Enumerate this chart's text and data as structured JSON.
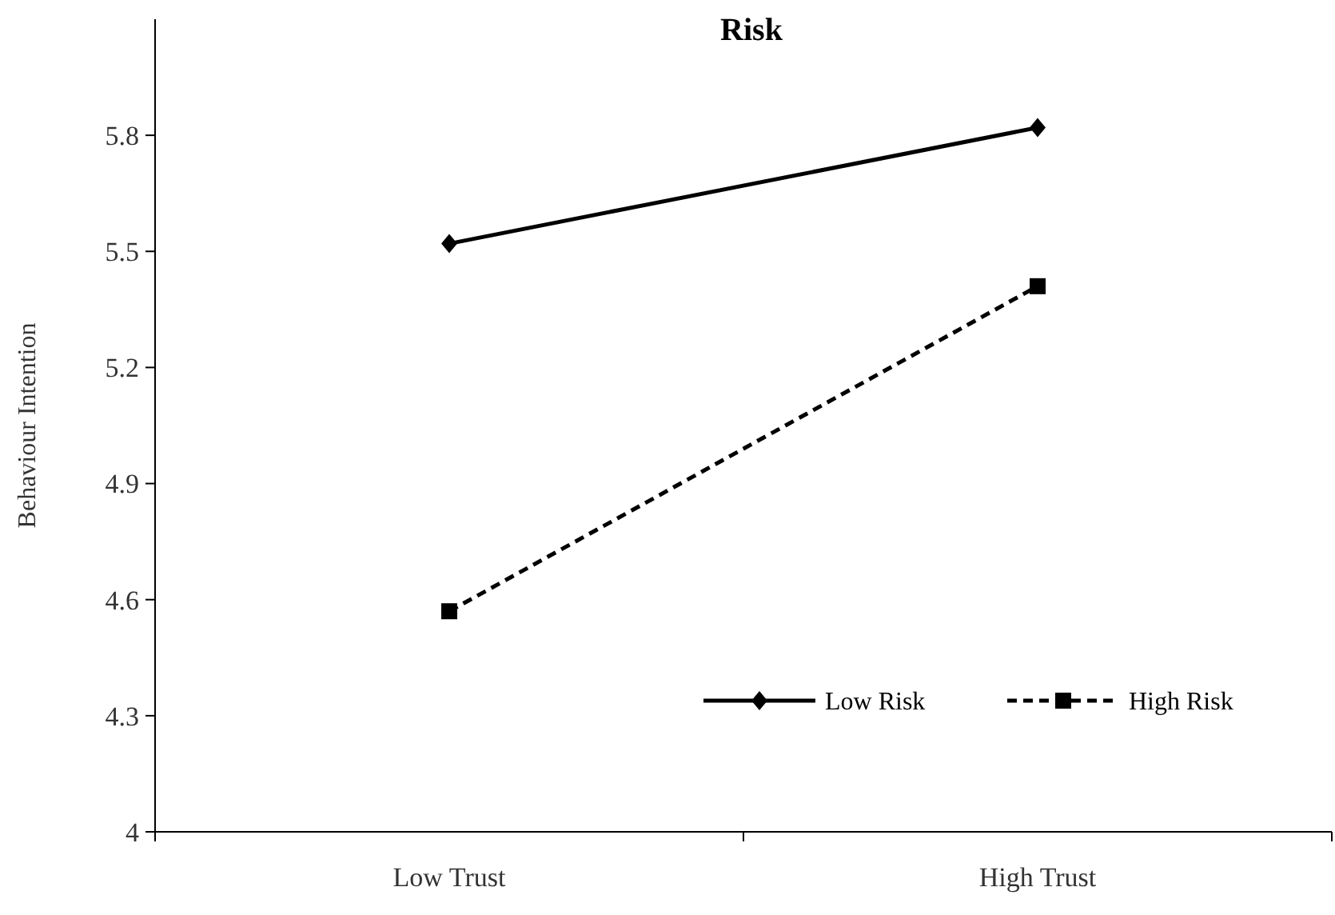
{
  "chart_data": {
    "type": "line",
    "title": "Risk",
    "ylabel": "Behaviour Intention",
    "categories": [
      "Low Trust",
      "High Trust"
    ],
    "series": [
      {
        "name": "Low Risk",
        "color": "#000000",
        "values": [
          5.52,
          5.82
        ],
        "marker": "diamond",
        "line_style": "solid"
      },
      {
        "name": "High Risk",
        "color": "#000000",
        "values": [
          4.57,
          5.41
        ],
        "marker": "square",
        "line_style": "dashed"
      }
    ],
    "ylim": [
      4,
      6.1
    ],
    "yticks": [
      4,
      4.3,
      4.6,
      4.9,
      5.2,
      5.5,
      5.8
    ],
    "grid": false,
    "legend": "bottom right"
  }
}
